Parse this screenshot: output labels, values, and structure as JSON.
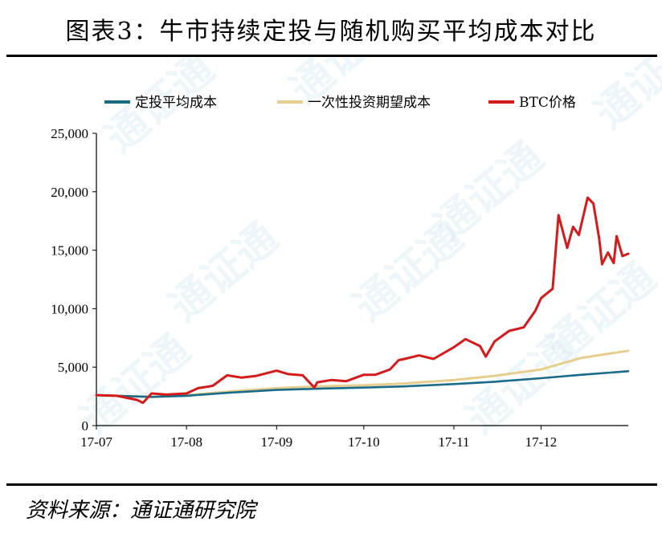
{
  "figure_title": "图表3：牛市持续定投与随机购买平均成本对比",
  "source_note": "资料来源：通证通研究院",
  "watermark_text": "通证通",
  "colors": {
    "dca": "#1a6b8a",
    "lump": "#e6cf8e",
    "btc": "#d41a1a"
  },
  "chart_data": {
    "type": "line",
    "x_tick_labels": [
      "17-07",
      "17-08",
      "17-09",
      "17-10",
      "17-11",
      "17-12"
    ],
    "x_range": [
      "2017-07-01",
      "2017-12-31"
    ],
    "y_ticks": [
      "0",
      "5,000",
      "10,000",
      "15,000",
      "20,000",
      "25,000"
    ],
    "ylim": [
      0,
      25000
    ],
    "legend_position": "top",
    "series": [
      {
        "name": "定投平均成本",
        "color_key": "dca",
        "points": [
          [
            "2017-07-01",
            2600
          ],
          [
            "2017-07-20",
            2450
          ],
          [
            "2017-08-01",
            2550
          ],
          [
            "2017-08-15",
            2800
          ],
          [
            "2017-09-01",
            3050
          ],
          [
            "2017-09-15",
            3150
          ],
          [
            "2017-10-01",
            3250
          ],
          [
            "2017-10-15",
            3350
          ],
          [
            "2017-11-01",
            3550
          ],
          [
            "2017-11-15",
            3750
          ],
          [
            "2017-12-01",
            4050
          ],
          [
            "2017-12-15",
            4350
          ],
          [
            "2017-12-31",
            4650
          ]
        ]
      },
      {
        "name": "一次性投资期望成本",
        "color_key": "lump",
        "points": [
          [
            "2017-07-01",
            2600
          ],
          [
            "2017-07-20",
            2450
          ],
          [
            "2017-08-01",
            2600
          ],
          [
            "2017-08-15",
            2900
          ],
          [
            "2017-09-01",
            3200
          ],
          [
            "2017-09-15",
            3350
          ],
          [
            "2017-10-01",
            3450
          ],
          [
            "2017-10-15",
            3600
          ],
          [
            "2017-11-01",
            3900
          ],
          [
            "2017-11-15",
            4250
          ],
          [
            "2017-12-01",
            4800
          ],
          [
            "2017-12-15",
            5800
          ],
          [
            "2017-12-31",
            6400
          ]
        ]
      },
      {
        "name": "BTC价格",
        "color_key": "btc",
        "points": [
          [
            "2017-07-01",
            2600
          ],
          [
            "2017-07-08",
            2550
          ],
          [
            "2017-07-15",
            2200
          ],
          [
            "2017-07-17",
            1950
          ],
          [
            "2017-07-20",
            2750
          ],
          [
            "2017-07-25",
            2650
          ],
          [
            "2017-08-01",
            2750
          ],
          [
            "2017-08-05",
            3200
          ],
          [
            "2017-08-10",
            3400
          ],
          [
            "2017-08-15",
            4300
          ],
          [
            "2017-08-20",
            4100
          ],
          [
            "2017-08-25",
            4250
          ],
          [
            "2017-09-01",
            4700
          ],
          [
            "2017-09-05",
            4400
          ],
          [
            "2017-09-10",
            4300
          ],
          [
            "2017-09-14",
            3250
          ],
          [
            "2017-09-15",
            3700
          ],
          [
            "2017-09-20",
            3900
          ],
          [
            "2017-09-25",
            3800
          ],
          [
            "2017-10-01",
            4350
          ],
          [
            "2017-10-05",
            4350
          ],
          [
            "2017-10-10",
            4800
          ],
          [
            "2017-10-13",
            5600
          ],
          [
            "2017-10-15",
            5700
          ],
          [
            "2017-10-20",
            6000
          ],
          [
            "2017-10-25",
            5700
          ],
          [
            "2017-11-01",
            6700
          ],
          [
            "2017-11-05",
            7400
          ],
          [
            "2017-11-10",
            6800
          ],
          [
            "2017-11-12",
            5900
          ],
          [
            "2017-11-15",
            7200
          ],
          [
            "2017-11-20",
            8100
          ],
          [
            "2017-11-25",
            8400
          ],
          [
            "2017-11-29",
            9800
          ],
          [
            "2017-12-01",
            10900
          ],
          [
            "2017-12-05",
            11700
          ],
          [
            "2017-12-07",
            18000
          ],
          [
            "2017-12-10",
            15200
          ],
          [
            "2017-12-12",
            17000
          ],
          [
            "2017-12-14",
            16300
          ],
          [
            "2017-12-17",
            19500
          ],
          [
            "2017-12-19",
            19000
          ],
          [
            "2017-12-21",
            16000
          ],
          [
            "2017-12-22",
            13800
          ],
          [
            "2017-12-24",
            14800
          ],
          [
            "2017-12-26",
            13900
          ],
          [
            "2017-12-27",
            16200
          ],
          [
            "2017-12-29",
            14500
          ],
          [
            "2017-12-31",
            14700
          ]
        ]
      }
    ]
  }
}
